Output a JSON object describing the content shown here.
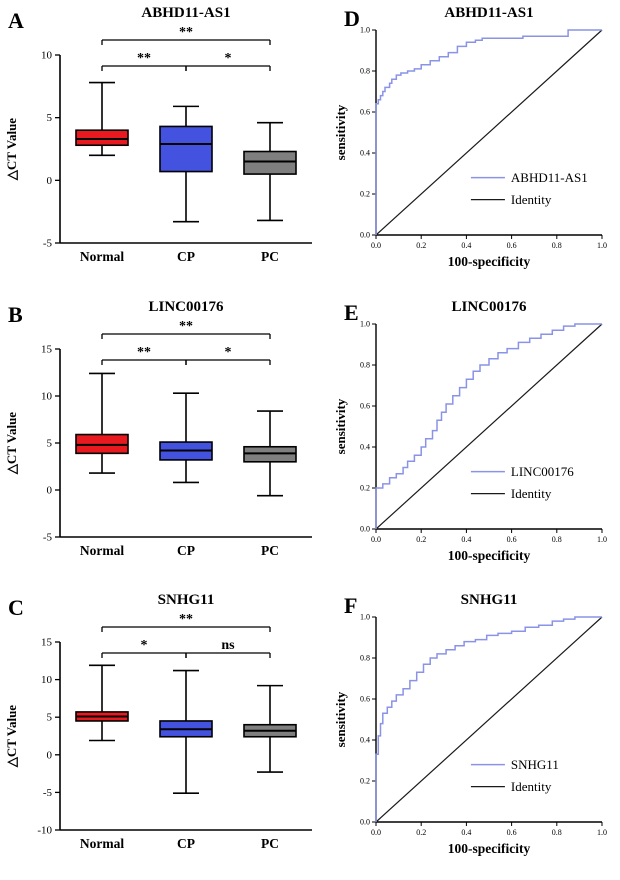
{
  "chart_data": [
    {
      "panel": "A",
      "type": "box",
      "title": "ABHD11-AS1",
      "ylabel": "△CT Value",
      "categories": [
        "Normal",
        "CP",
        "PC"
      ],
      "ylim": [
        -5,
        10
      ],
      "yticks": [
        -5,
        0,
        5,
        10
      ],
      "series": [
        {
          "name": "Normal",
          "color": "#e8191f",
          "whislo": 2.0,
          "q1": 2.8,
          "median": 3.3,
          "q3": 4.0,
          "whishi": 7.8
        },
        {
          "name": "CP",
          "color": "#4452e0",
          "whislo": -3.3,
          "q1": 0.7,
          "median": 2.9,
          "q3": 4.3,
          "whishi": 5.9
        },
        {
          "name": "PC",
          "color": "#7f7f7f",
          "whislo": -3.2,
          "q1": 0.5,
          "median": 1.5,
          "q3": 2.3,
          "whishi": 4.6
        }
      ],
      "comparisons": [
        {
          "a": 0,
          "b": 2,
          "label": "**",
          "level": 1
        },
        {
          "a": 0,
          "b": 1,
          "label": "**",
          "level": 0
        },
        {
          "a": 1,
          "b": 2,
          "label": "*",
          "level": 0
        }
      ]
    },
    {
      "panel": "D",
      "type": "roc",
      "title": "ABHD11-AS1",
      "xlabel": "100-specificity",
      "ylabel": "sensitivity",
      "ticks": [
        0,
        0.2,
        0.4,
        0.6,
        0.8,
        1.0
      ],
      "legend": [
        "ABHD11-AS1",
        "Identity"
      ],
      "curve_color": "#8a93e6",
      "identity_color": "#1a1a1a",
      "points": [
        [
          0,
          0
        ],
        [
          0,
          0.63
        ],
        [
          0.01,
          0.64
        ],
        [
          0.02,
          0.66
        ],
        [
          0.03,
          0.68
        ],
        [
          0.04,
          0.7
        ],
        [
          0.06,
          0.72
        ],
        [
          0.07,
          0.74
        ],
        [
          0.09,
          0.76
        ],
        [
          0.11,
          0.78
        ],
        [
          0.14,
          0.79
        ],
        [
          0.17,
          0.8
        ],
        [
          0.2,
          0.81
        ],
        [
          0.24,
          0.83
        ],
        [
          0.28,
          0.85
        ],
        [
          0.32,
          0.87
        ],
        [
          0.36,
          0.89
        ],
        [
          0.4,
          0.92
        ],
        [
          0.44,
          0.94
        ],
        [
          0.47,
          0.95
        ],
        [
          0.55,
          0.96
        ],
        [
          0.65,
          0.96
        ],
        [
          0.75,
          0.97
        ],
        [
          0.85,
          0.97
        ],
        [
          0.86,
          1.0
        ],
        [
          1,
          1
        ]
      ]
    },
    {
      "panel": "B",
      "type": "box",
      "title": "LINC00176",
      "ylabel": "△CT Value",
      "categories": [
        "Normal",
        "CP",
        "PC"
      ],
      "ylim": [
        -5,
        15
      ],
      "yticks": [
        -5,
        0,
        5,
        10,
        15
      ],
      "series": [
        {
          "name": "Normal",
          "color": "#e8191f",
          "whislo": 1.8,
          "q1": 3.9,
          "median": 4.8,
          "q3": 5.9,
          "whishi": 12.4
        },
        {
          "name": "CP",
          "color": "#4452e0",
          "whislo": 0.8,
          "q1": 3.2,
          "median": 4.2,
          "q3": 5.1,
          "whishi": 10.3
        },
        {
          "name": "PC",
          "color": "#7f7f7f",
          "whislo": -0.6,
          "q1": 3.0,
          "median": 3.9,
          "q3": 4.6,
          "whishi": 8.4
        }
      ],
      "comparisons": [
        {
          "a": 0,
          "b": 2,
          "label": "**",
          "level": 1
        },
        {
          "a": 0,
          "b": 1,
          "label": "**",
          "level": 0
        },
        {
          "a": 1,
          "b": 2,
          "label": "*",
          "level": 0
        }
      ]
    },
    {
      "panel": "E",
      "type": "roc",
      "title": "LINC00176",
      "xlabel": "100-specificity",
      "ylabel": "sensitivity",
      "ticks": [
        0,
        0.2,
        0.4,
        0.6,
        0.8,
        1.0
      ],
      "legend": [
        "LINC00176",
        "Identity"
      ],
      "curve_color": "#8a93e6",
      "identity_color": "#1a1a1a",
      "points": [
        [
          0,
          0
        ],
        [
          0,
          0.18
        ],
        [
          0.03,
          0.2
        ],
        [
          0.06,
          0.22
        ],
        [
          0.09,
          0.25
        ],
        [
          0.12,
          0.27
        ],
        [
          0.14,
          0.3
        ],
        [
          0.17,
          0.33
        ],
        [
          0.2,
          0.36
        ],
        [
          0.22,
          0.4
        ],
        [
          0.25,
          0.44
        ],
        [
          0.27,
          0.48
        ],
        [
          0.29,
          0.53
        ],
        [
          0.31,
          0.57
        ],
        [
          0.34,
          0.61
        ],
        [
          0.37,
          0.65
        ],
        [
          0.4,
          0.69
        ],
        [
          0.43,
          0.73
        ],
        [
          0.46,
          0.77
        ],
        [
          0.5,
          0.8
        ],
        [
          0.54,
          0.83
        ],
        [
          0.58,
          0.86
        ],
        [
          0.63,
          0.88
        ],
        [
          0.68,
          0.91
        ],
        [
          0.73,
          0.93
        ],
        [
          0.78,
          0.95
        ],
        [
          0.83,
          0.97
        ],
        [
          0.88,
          0.99
        ],
        [
          0.9,
          1.0
        ],
        [
          1,
          1
        ]
      ]
    },
    {
      "panel": "C",
      "type": "box",
      "title": "SNHG11",
      "ylabel": "△CT Value",
      "categories": [
        "Normal",
        "CP",
        "PC"
      ],
      "ylim": [
        -10,
        15
      ],
      "yticks": [
        -10,
        -5,
        0,
        5,
        10,
        15
      ],
      "series": [
        {
          "name": "Normal",
          "color": "#e8191f",
          "whislo": 1.9,
          "q1": 4.5,
          "median": 5.1,
          "q3": 5.7,
          "whishi": 11.9
        },
        {
          "name": "CP",
          "color": "#4452e0",
          "whislo": -5.1,
          "q1": 2.4,
          "median": 3.4,
          "q3": 4.5,
          "whishi": 11.2
        },
        {
          "name": "PC",
          "color": "#7f7f7f",
          "whislo": -2.3,
          "q1": 2.4,
          "median": 3.2,
          "q3": 4.0,
          "whishi": 9.2
        }
      ],
      "comparisons": [
        {
          "a": 0,
          "b": 2,
          "label": "**",
          "level": 1
        },
        {
          "a": 0,
          "b": 1,
          "label": "*",
          "level": 0
        },
        {
          "a": 1,
          "b": 2,
          "label": "ns",
          "level": 0
        }
      ]
    },
    {
      "panel": "F",
      "type": "roc",
      "title": "SNHG11",
      "xlabel": "100-specificity",
      "ylabel": "sensitivity",
      "ticks": [
        0,
        0.2,
        0.4,
        0.6,
        0.8,
        1.0
      ],
      "legend": [
        "SNHG11",
        "Identity"
      ],
      "curve_color": "#8a93e6",
      "identity_color": "#1a1a1a",
      "points": [
        [
          0,
          0
        ],
        [
          0,
          0.2
        ],
        [
          0.01,
          0.33
        ],
        [
          0.02,
          0.42
        ],
        [
          0.03,
          0.48
        ],
        [
          0.05,
          0.53
        ],
        [
          0.07,
          0.56
        ],
        [
          0.09,
          0.59
        ],
        [
          0.12,
          0.62
        ],
        [
          0.15,
          0.65
        ],
        [
          0.18,
          0.69
        ],
        [
          0.21,
          0.73
        ],
        [
          0.24,
          0.77
        ],
        [
          0.27,
          0.8
        ],
        [
          0.31,
          0.82
        ],
        [
          0.35,
          0.84
        ],
        [
          0.39,
          0.86
        ],
        [
          0.44,
          0.88
        ],
        [
          0.49,
          0.89
        ],
        [
          0.54,
          0.91
        ],
        [
          0.6,
          0.92
        ],
        [
          0.66,
          0.93
        ],
        [
          0.72,
          0.95
        ],
        [
          0.78,
          0.96
        ],
        [
          0.83,
          0.98
        ],
        [
          0.88,
          0.99
        ],
        [
          0.92,
          1.0
        ],
        [
          1,
          1
        ]
      ]
    }
  ]
}
